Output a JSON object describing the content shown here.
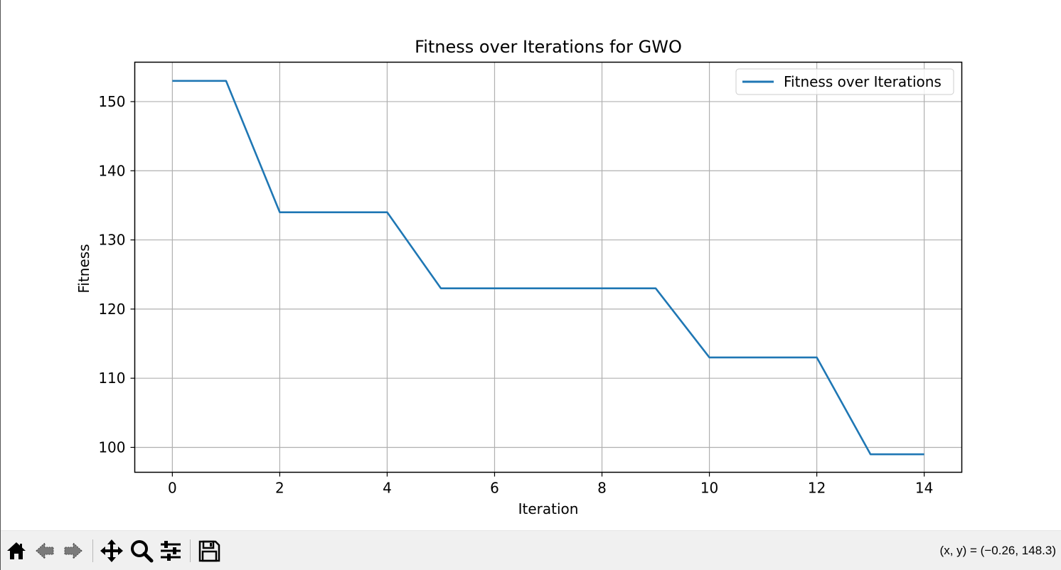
{
  "chart_data": {
    "type": "line",
    "title": "Fitness over Iterations for GWO",
    "xlabel": "Iteration",
    "ylabel": "Fitness",
    "xlim": [
      -0.7,
      14.7
    ],
    "ylim": [
      96.4,
      155.7
    ],
    "xticks": [
      0,
      2,
      4,
      6,
      8,
      10,
      12,
      14
    ],
    "yticks": [
      100,
      110,
      120,
      130,
      140,
      150
    ],
    "grid": true,
    "legend": "top-right",
    "series": [
      {
        "name": "Fitness over Iterations",
        "color": "#1f77b4",
        "x": [
          0,
          1,
          2,
          3,
          4,
          5,
          6,
          7,
          8,
          9,
          10,
          11,
          12,
          13,
          14
        ],
        "y": [
          153,
          153,
          134,
          134,
          134,
          123,
          123,
          123,
          123,
          123,
          113,
          113,
          113,
          99,
          99
        ]
      }
    ]
  },
  "toolbar": {
    "items": [
      {
        "name": "home-icon"
      },
      {
        "name": "back-arrow-icon"
      },
      {
        "name": "forward-arrow-icon"
      },
      {
        "name": "pan-move-icon"
      },
      {
        "name": "zoom-magnifier-icon"
      },
      {
        "name": "configure-subplots-icon"
      },
      {
        "name": "save-floppy-icon"
      }
    ],
    "coords": "(x, y) = (−0.26, 148.3)"
  }
}
